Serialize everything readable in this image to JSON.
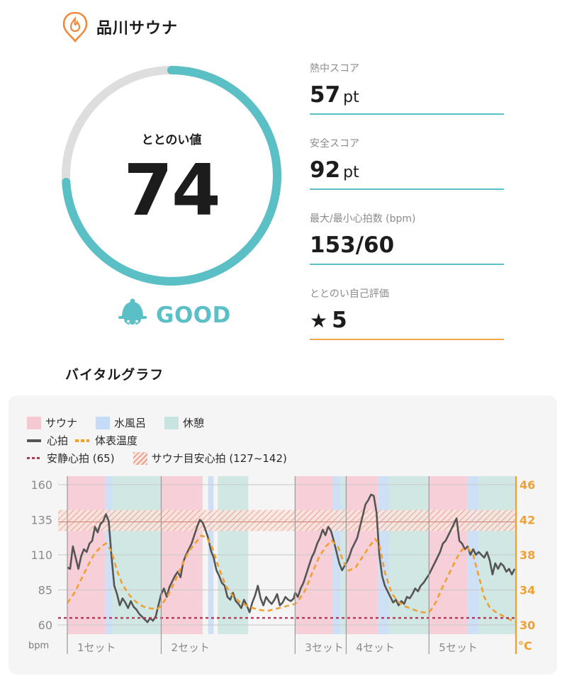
{
  "header": {
    "facility_name": "品川サウナ",
    "icon": "sauna-pin-icon"
  },
  "gauge": {
    "label": "ととのい値",
    "value": "74",
    "max": 100,
    "percent": 74,
    "color": "#5bbfc6",
    "track_color": "#dedede"
  },
  "verdict": {
    "text": "GOOD",
    "icon": "hat-face-icon",
    "color": "#5bbfc6"
  },
  "metrics": [
    {
      "label": "熱中スコア",
      "value": "57",
      "unit": "pt"
    },
    {
      "label": "安全スコア",
      "value": "92",
      "unit": "pt"
    },
    {
      "label": "最大/最小心拍数 (bpm)",
      "value": "153/60",
      "unit": ""
    },
    {
      "label": "ととのい自己評価",
      "value": "5",
      "unit": "",
      "icon": "star-icon"
    }
  ],
  "section_title": "バイタルグラフ",
  "legend": {
    "sauna": "サウナ",
    "water_bath": "水風呂",
    "rest": "休憩",
    "heart_rate": "心拍",
    "body_temp": "体表温度",
    "resting_hr": "安静心拍 (65)",
    "target_hr": "サウナ目安心拍 (127~142)"
  },
  "colors": {
    "sauna": "#f6c8d2",
    "water_bath": "#c6dcf6",
    "rest": "#c9e4e0",
    "heart_rate": "#555555",
    "body_temp": "#f0a030",
    "resting_hr": "#b03a5a",
    "target_hr": "#e8a090"
  },
  "chart_data": {
    "type": "line",
    "y_left": {
      "label": "bpm",
      "ticks": [
        "160",
        "135",
        "110",
        "85",
        "60"
      ],
      "range": [
        60,
        160
      ]
    },
    "y_right": {
      "label": "°C",
      "ticks": [
        "46",
        "42",
        "38",
        "34",
        "30"
      ],
      "range": [
        30,
        46
      ]
    },
    "sets": [
      "1セット",
      "2セット",
      "3セット",
      "4セット",
      "5セット"
    ],
    "resting_hr": 65,
    "target_hr_range": [
      127,
      142
    ],
    "phases": [
      {
        "type": "sauna",
        "from": 0,
        "to": 5.5
      },
      {
        "type": "water",
        "from": 5.5,
        "to": 6.5
      },
      {
        "type": "rest",
        "from": 6.5,
        "to": 13.6
      },
      {
        "type": "sauna",
        "from": 13.6,
        "to": 19.6
      },
      {
        "type": "water",
        "from": 20.4,
        "to": 21.2
      },
      {
        "type": "rest",
        "from": 21.8,
        "to": 26.2
      },
      {
        "type": "sauna",
        "from": 33.0,
        "to": 38.4
      },
      {
        "type": "water",
        "from": 38.4,
        "to": 39.6
      },
      {
        "type": "rest",
        "from": 39.6,
        "to": 40.4
      },
      {
        "type": "sauna",
        "from": 40.4,
        "to": 45.0
      },
      {
        "type": "water",
        "from": 45.0,
        "to": 46.6
      },
      {
        "type": "rest",
        "from": 46.6,
        "to": 52.4
      },
      {
        "type": "sauna",
        "from": 52.4,
        "to": 58.0
      },
      {
        "type": "water",
        "from": 58.0,
        "to": 59.6
      },
      {
        "type": "rest",
        "from": 59.6,
        "to": 65.0
      }
    ],
    "set_starts": [
      0,
      13.6,
      33.0,
      40.4,
      52.4
    ],
    "x_range": [
      0,
      65
    ],
    "heart_rate": [
      [
        0,
        101
      ],
      [
        0.4,
        100
      ],
      [
        0.8,
        116
      ],
      [
        1.2,
        108
      ],
      [
        1.6,
        100
      ],
      [
        2.0,
        109
      ],
      [
        2.4,
        114
      ],
      [
        2.8,
        112
      ],
      [
        3.2,
        118
      ],
      [
        3.6,
        120
      ],
      [
        4.0,
        130
      ],
      [
        4.4,
        126
      ],
      [
        4.8,
        132
      ],
      [
        5.2,
        134
      ],
      [
        5.6,
        139
      ],
      [
        6.0,
        134
      ],
      [
        6.4,
        109
      ],
      [
        6.8,
        88
      ],
      [
        7.2,
        82
      ],
      [
        7.6,
        74
      ],
      [
        8.0,
        79
      ],
      [
        8.4,
        76
      ],
      [
        8.8,
        72
      ],
      [
        9.2,
        77
      ],
      [
        9.6,
        73
      ],
      [
        10.0,
        71
      ],
      [
        10.4,
        68
      ],
      [
        10.8,
        66
      ],
      [
        11.2,
        64
      ],
      [
        11.6,
        62
      ],
      [
        12.0,
        65
      ],
      [
        12.4,
        63
      ],
      [
        12.8,
        66
      ],
      [
        13.6,
        82
      ],
      [
        14.0,
        86
      ],
      [
        14.4,
        80
      ],
      [
        14.8,
        87
      ],
      [
        15.2,
        91
      ],
      [
        15.6,
        95
      ],
      [
        16.0,
        98
      ],
      [
        16.4,
        94
      ],
      [
        16.8,
        105
      ],
      [
        17.2,
        110
      ],
      [
        17.6,
        114
      ],
      [
        18.0,
        118
      ],
      [
        18.4,
        124
      ],
      [
        18.8,
        130
      ],
      [
        19.2,
        135
      ],
      [
        19.6,
        133
      ],
      [
        20.0,
        128
      ],
      [
        20.4,
        122
      ],
      [
        20.8,
        113
      ],
      [
        21.2,
        108
      ],
      [
        21.6,
        99
      ],
      [
        22.0,
        95
      ],
      [
        22.4,
        90
      ],
      [
        22.8,
        88
      ],
      [
        23.2,
        80
      ],
      [
        23.6,
        78
      ],
      [
        24.0,
        83
      ],
      [
        24.4,
        77
      ],
      [
        24.8,
        75
      ],
      [
        25.2,
        72
      ],
      [
        25.6,
        78
      ],
      [
        26.0,
        74
      ],
      [
        26.4,
        69
      ],
      [
        26.8,
        76
      ],
      [
        27.2,
        81
      ],
      [
        27.6,
        88
      ],
      [
        28.0,
        79
      ],
      [
        28.4,
        74
      ],
      [
        28.8,
        80
      ],
      [
        29.2,
        77
      ],
      [
        29.6,
        75
      ],
      [
        30.0,
        78
      ],
      [
        30.4,
        82
      ],
      [
        30.8,
        74
      ],
      [
        31.2,
        76
      ],
      [
        31.6,
        80
      ],
      [
        32.0,
        78
      ],
      [
        32.4,
        77
      ],
      [
        32.8,
        79
      ],
      [
        33.0,
        83
      ],
      [
        33.4,
        80
      ],
      [
        33.8,
        86
      ],
      [
        34.2,
        90
      ],
      [
        34.6,
        96
      ],
      [
        35.0,
        102
      ],
      [
        35.4,
        108
      ],
      [
        35.8,
        112
      ],
      [
        36.2,
        118
      ],
      [
        36.6,
        122
      ],
      [
        37.0,
        128
      ],
      [
        37.4,
        124
      ],
      [
        37.8,
        130
      ],
      [
        38.2,
        127
      ],
      [
        38.6,
        120
      ],
      [
        39.0,
        112
      ],
      [
        39.4,
        104
      ],
      [
        39.8,
        99
      ],
      [
        40.4,
        104
      ],
      [
        40.8,
        108
      ],
      [
        41.2,
        114
      ],
      [
        41.6,
        118
      ],
      [
        42.0,
        122
      ],
      [
        42.4,
        130
      ],
      [
        42.8,
        138
      ],
      [
        43.2,
        146
      ],
      [
        43.6,
        149
      ],
      [
        44.0,
        153
      ],
      [
        44.4,
        152
      ],
      [
        44.8,
        140
      ],
      [
        45.2,
        110
      ],
      [
        45.6,
        95
      ],
      [
        46.0,
        88
      ],
      [
        46.4,
        84
      ],
      [
        46.8,
        80
      ],
      [
        47.2,
        76
      ],
      [
        47.6,
        78
      ],
      [
        48.0,
        74
      ],
      [
        48.4,
        77
      ],
      [
        48.8,
        75
      ],
      [
        49.2,
        80
      ],
      [
        49.6,
        79
      ],
      [
        50.0,
        82
      ],
      [
        50.4,
        86
      ],
      [
        50.8,
        84
      ],
      [
        51.2,
        88
      ],
      [
        51.6,
        90
      ],
      [
        52.0,
        93
      ],
      [
        52.4,
        96
      ],
      [
        52.8,
        100
      ],
      [
        53.2,
        104
      ],
      [
        53.6,
        108
      ],
      [
        54.0,
        112
      ],
      [
        54.4,
        118
      ],
      [
        54.8,
        120
      ],
      [
        55.2,
        124
      ],
      [
        55.6,
        128
      ],
      [
        56.0,
        132
      ],
      [
        56.4,
        136
      ],
      [
        56.8,
        120
      ],
      [
        57.2,
        118
      ],
      [
        57.6,
        114
      ],
      [
        58.0,
        116
      ],
      [
        58.4,
        110
      ],
      [
        58.8,
        114
      ],
      [
        59.2,
        110
      ],
      [
        59.6,
        112
      ],
      [
        60.0,
        110
      ],
      [
        60.4,
        108
      ],
      [
        60.8,
        112
      ],
      [
        61.2,
        106
      ],
      [
        61.6,
        96
      ],
      [
        62.0,
        104
      ],
      [
        62.4,
        100
      ],
      [
        62.8,
        104
      ],
      [
        63.2,
        102
      ],
      [
        63.6,
        98
      ],
      [
        64.0,
        100
      ],
      [
        64.4,
        96
      ],
      [
        64.8,
        100
      ]
    ],
    "body_temp": [
      [
        0,
        32.5
      ],
      [
        1,
        33.6
      ],
      [
        2,
        35.2
      ],
      [
        3,
        36.8
      ],
      [
        4,
        38.2
      ],
      [
        5,
        39.0
      ],
      [
        5.6,
        39.3
      ],
      [
        6.4,
        38.4
      ],
      [
        7.2,
        36.2
      ],
      [
        8,
        34.6
      ],
      [
        9,
        33.4
      ],
      [
        10,
        32.6
      ],
      [
        11,
        32.1
      ],
      [
        12,
        31.9
      ],
      [
        13,
        31.8
      ],
      [
        13.6,
        32.2
      ],
      [
        14.6,
        33.4
      ],
      [
        15.6,
        35.0
      ],
      [
        16.6,
        36.8
      ],
      [
        17.6,
        38.4
      ],
      [
        18.6,
        39.4
      ],
      [
        19.4,
        40.2
      ],
      [
        20.2,
        40.0
      ],
      [
        21,
        38.8
      ],
      [
        22,
        36.4
      ],
      [
        23,
        34.4
      ],
      [
        24,
        33.3
      ],
      [
        25,
        32.6
      ],
      [
        26,
        32.2
      ],
      [
        27,
        31.9
      ],
      [
        28,
        31.7
      ],
      [
        29,
        31.6
      ],
      [
        30,
        31.8
      ],
      [
        31,
        32.0
      ],
      [
        32,
        32.2
      ],
      [
        33,
        32.4
      ],
      [
        33.5,
        32.8
      ],
      [
        34.5,
        34.0
      ],
      [
        35.5,
        36.0
      ],
      [
        36.5,
        37.8
      ],
      [
        37.5,
        39.0
      ],
      [
        38.3,
        39.6
      ],
      [
        39.2,
        39.0
      ],
      [
        40.0,
        37.2
      ],
      [
        40.8,
        36.2
      ],
      [
        41.8,
        36.6
      ],
      [
        42.8,
        37.8
      ],
      [
        43.8,
        39.0
      ],
      [
        44.6,
        39.8
      ],
      [
        45.2,
        39.2
      ],
      [
        46.0,
        36.0
      ],
      [
        47,
        33.6
      ],
      [
        48,
        32.6
      ],
      [
        49,
        32.1
      ],
      [
        50,
        31.8
      ],
      [
        51,
        31.5
      ],
      [
        52,
        31.4
      ],
      [
        52.6,
        31.6
      ],
      [
        53.4,
        32.6
      ],
      [
        54.4,
        34.4
      ],
      [
        55.4,
        36.0
      ],
      [
        56.4,
        37.6
      ],
      [
        57.2,
        38.6
      ],
      [
        58.0,
        38.8
      ],
      [
        58.8,
        38.0
      ],
      [
        59.6,
        35.6
      ],
      [
        60.4,
        33.2
      ],
      [
        61.2,
        32.0
      ],
      [
        62.2,
        31.4
      ],
      [
        63.2,
        31.0
      ],
      [
        64.2,
        30.6
      ],
      [
        65,
        30.3
      ]
    ]
  }
}
